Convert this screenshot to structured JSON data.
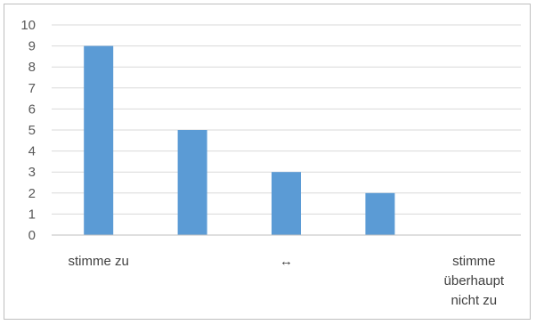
{
  "chart_data": {
    "type": "bar",
    "categories": [
      [
        "stimme zu"
      ],
      [
        ""
      ],
      [
        "↔"
      ],
      [
        ""
      ],
      [
        "stimme",
        "überhaupt",
        "nicht zu"
      ]
    ],
    "values": [
      9,
      5,
      3,
      2,
      0
    ],
    "ylim": [
      0,
      10
    ],
    "yticks": [
      0,
      1,
      2,
      3,
      4,
      5,
      6,
      7,
      8,
      9,
      10
    ],
    "grid": true,
    "bar_color": "#5b9bd5"
  }
}
